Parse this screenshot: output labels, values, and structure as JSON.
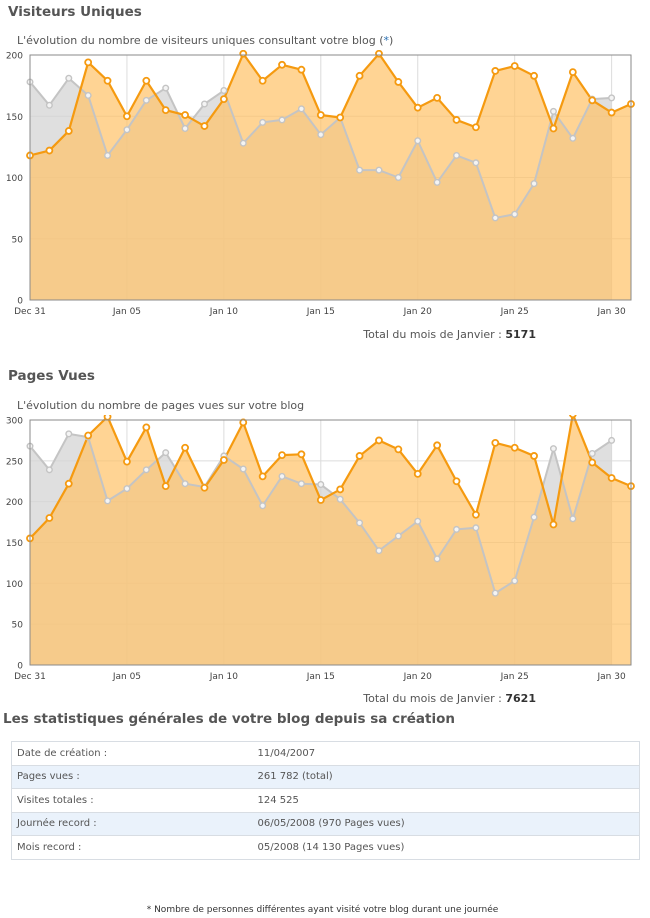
{
  "section1": {
    "title": "Visiteurs Uniques",
    "subtitle_prefix": "L'évolution du nombre de visiteurs uniques consultant votre blog (",
    "subtitle_link": "*",
    "subtitle_suffix": ")",
    "total_label": "Total du mois de Janvier : ",
    "total_value": "5171"
  },
  "section2": {
    "title": "Pages Vues",
    "subtitle": "L'évolution du nombre de pages vues sur votre blog",
    "total_label": "Total du mois de Janvier : ",
    "total_value": "7621"
  },
  "chart_data": [
    {
      "type": "area",
      "ylim": [
        0,
        200
      ],
      "yticks": [
        0,
        50,
        100,
        150,
        200
      ],
      "x_tick_labels": [
        "Dec 31",
        "Jan 05",
        "Jan 10",
        "Jan 15",
        "Jan 20",
        "Jan 25",
        "Jan 30"
      ],
      "x_tick_index": [
        0,
        5,
        10,
        15,
        20,
        25,
        30
      ],
      "series": [
        {
          "color": "#c8c8c8",
          "values": [
            178,
            159,
            181,
            167,
            118,
            139,
            163,
            173,
            140,
            160,
            171,
            128,
            145,
            147,
            156,
            135,
            149,
            106,
            106,
            100,
            130,
            96,
            118,
            112,
            67,
            70,
            95,
            154,
            132,
            164,
            165,
            null
          ]
        },
        {
          "color": "#f5a01a",
          "values": [
            118,
            122,
            138,
            194,
            179,
            150,
            179,
            155,
            151,
            142,
            164,
            201,
            179,
            192,
            188,
            151,
            149,
            183,
            201,
            178,
            157,
            165,
            147,
            141,
            187,
            191,
            183,
            140,
            186,
            163,
            153,
            160
          ]
        }
      ]
    },
    {
      "type": "area",
      "ylim": [
        0,
        300
      ],
      "yticks": [
        0,
        50,
        100,
        150,
        200,
        250,
        300
      ],
      "x_tick_labels": [
        "Dec 31",
        "Jan 05",
        "Jan 10",
        "Jan 15",
        "Jan 20",
        "Jan 25",
        "Jan 30"
      ],
      "x_tick_index": [
        0,
        5,
        10,
        15,
        20,
        25,
        30
      ],
      "series": [
        {
          "color": "#c8c8c8",
          "values": [
            268,
            239,
            283,
            279,
            201,
            216,
            239,
            260,
            222,
            218,
            256,
            240,
            195,
            231,
            222,
            221,
            203,
            174,
            140,
            158,
            176,
            130,
            166,
            168,
            88,
            103,
            181,
            265,
            179,
            259,
            275,
            null
          ]
        },
        {
          "color": "#f5a01a",
          "values": [
            155,
            180,
            222,
            281,
            304,
            249,
            291,
            219,
            266,
            217,
            251,
            297,
            231,
            257,
            258,
            202,
            215,
            256,
            275,
            264,
            234,
            269,
            225,
            184,
            272,
            266,
            256,
            172,
            307,
            248,
            229,
            219
          ]
        }
      ]
    }
  ],
  "stats": {
    "title": "Les statistiques générales de votre blog depuis sa création",
    "rows": [
      {
        "label": "Date de création :",
        "value": "11/04/2007"
      },
      {
        "label": "Pages vues :",
        "value": "261 782 (total)"
      },
      {
        "label": "Visites totales :",
        "value": "124 525"
      },
      {
        "label": "Journée record :",
        "value": "06/05/2008 (970 Pages vues)"
      },
      {
        "label": "Mois record :",
        "value": "05/2008 (14 130 Pages vues)"
      }
    ]
  },
  "footnote": "* Nombre de personnes différentes ayant visité votre blog durant une journée"
}
